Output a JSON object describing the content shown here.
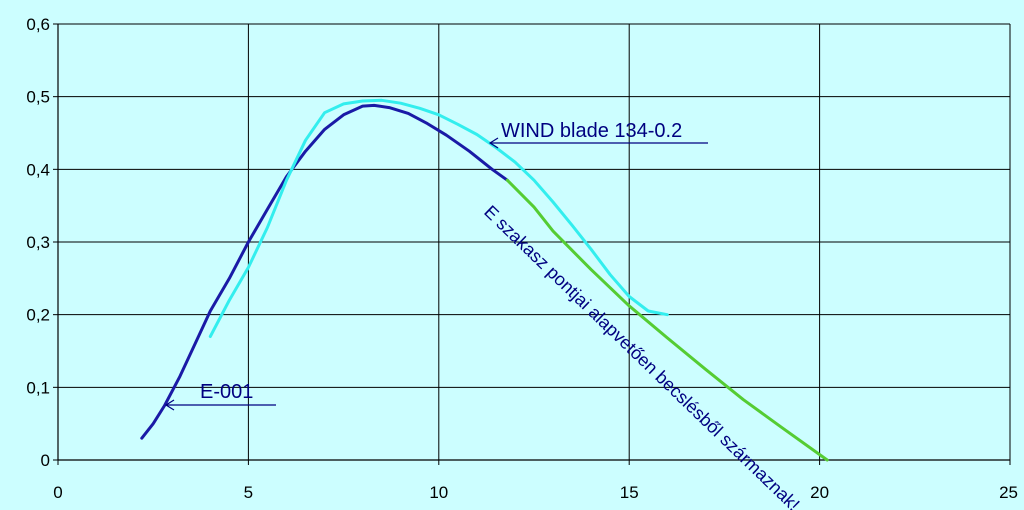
{
  "chart_data": {
    "type": "line",
    "title": "",
    "xlabel": "",
    "ylabel": "",
    "xlim": [
      0,
      25
    ],
    "ylim": [
      0,
      0.6
    ],
    "x_ticks": [
      "0",
      "5",
      "10",
      "15",
      "20",
      "25"
    ],
    "y_ticks": [
      "0",
      "0,1",
      "0,2",
      "0,3",
      "0,4",
      "0,5",
      "0,6"
    ],
    "grid": true,
    "series": [
      {
        "name": "E-001",
        "color": "#1a1aa6",
        "x": [
          2.2,
          2.5,
          2.8,
          3.2,
          3.6,
          4.0,
          4.5,
          5.0,
          5.5,
          6.0,
          6.5,
          7.0,
          7.5,
          8.0,
          8.3,
          8.7,
          9.2,
          9.7,
          10.2,
          10.8,
          11.4,
          11.8
        ],
        "y": [
          0.03,
          0.05,
          0.075,
          0.115,
          0.16,
          0.205,
          0.25,
          0.3,
          0.345,
          0.39,
          0.425,
          0.455,
          0.475,
          0.487,
          0.488,
          0.485,
          0.477,
          0.463,
          0.447,
          0.425,
          0.4,
          0.385
        ]
      },
      {
        "name": "WIND blade 134-0.2",
        "color": "#33eeee",
        "x": [
          4.0,
          4.5,
          5.0,
          5.5,
          6.0,
          6.5,
          7.0,
          7.5,
          8.0,
          8.5,
          9.0,
          9.5,
          10.0,
          10.5,
          11.0,
          11.5,
          12.0,
          12.5,
          13.0,
          13.5,
          14.0,
          14.5,
          15.0,
          15.5,
          16.0
        ],
        "y": [
          0.17,
          0.22,
          0.265,
          0.32,
          0.385,
          0.44,
          0.478,
          0.49,
          0.494,
          0.495,
          0.491,
          0.484,
          0.475,
          0.462,
          0.448,
          0.43,
          0.41,
          0.385,
          0.355,
          0.323,
          0.29,
          0.255,
          0.225,
          0.205,
          0.2
        ]
      },
      {
        "name": "becslés",
        "color": "#55cc33",
        "x": [
          11.8,
          12.5,
          13.0,
          14.0,
          15.0,
          16.0,
          17.0,
          18.0,
          19.0,
          20.2
        ],
        "y": [
          0.385,
          0.348,
          0.315,
          0.262,
          0.212,
          0.168,
          0.125,
          0.083,
          0.045,
          0.0
        ]
      }
    ],
    "annotations": {
      "e001": "E-001",
      "wind": "WIND blade 134-0.2",
      "estimate": "E szakasz pontjai alapvetően becslésből származnak!"
    }
  }
}
